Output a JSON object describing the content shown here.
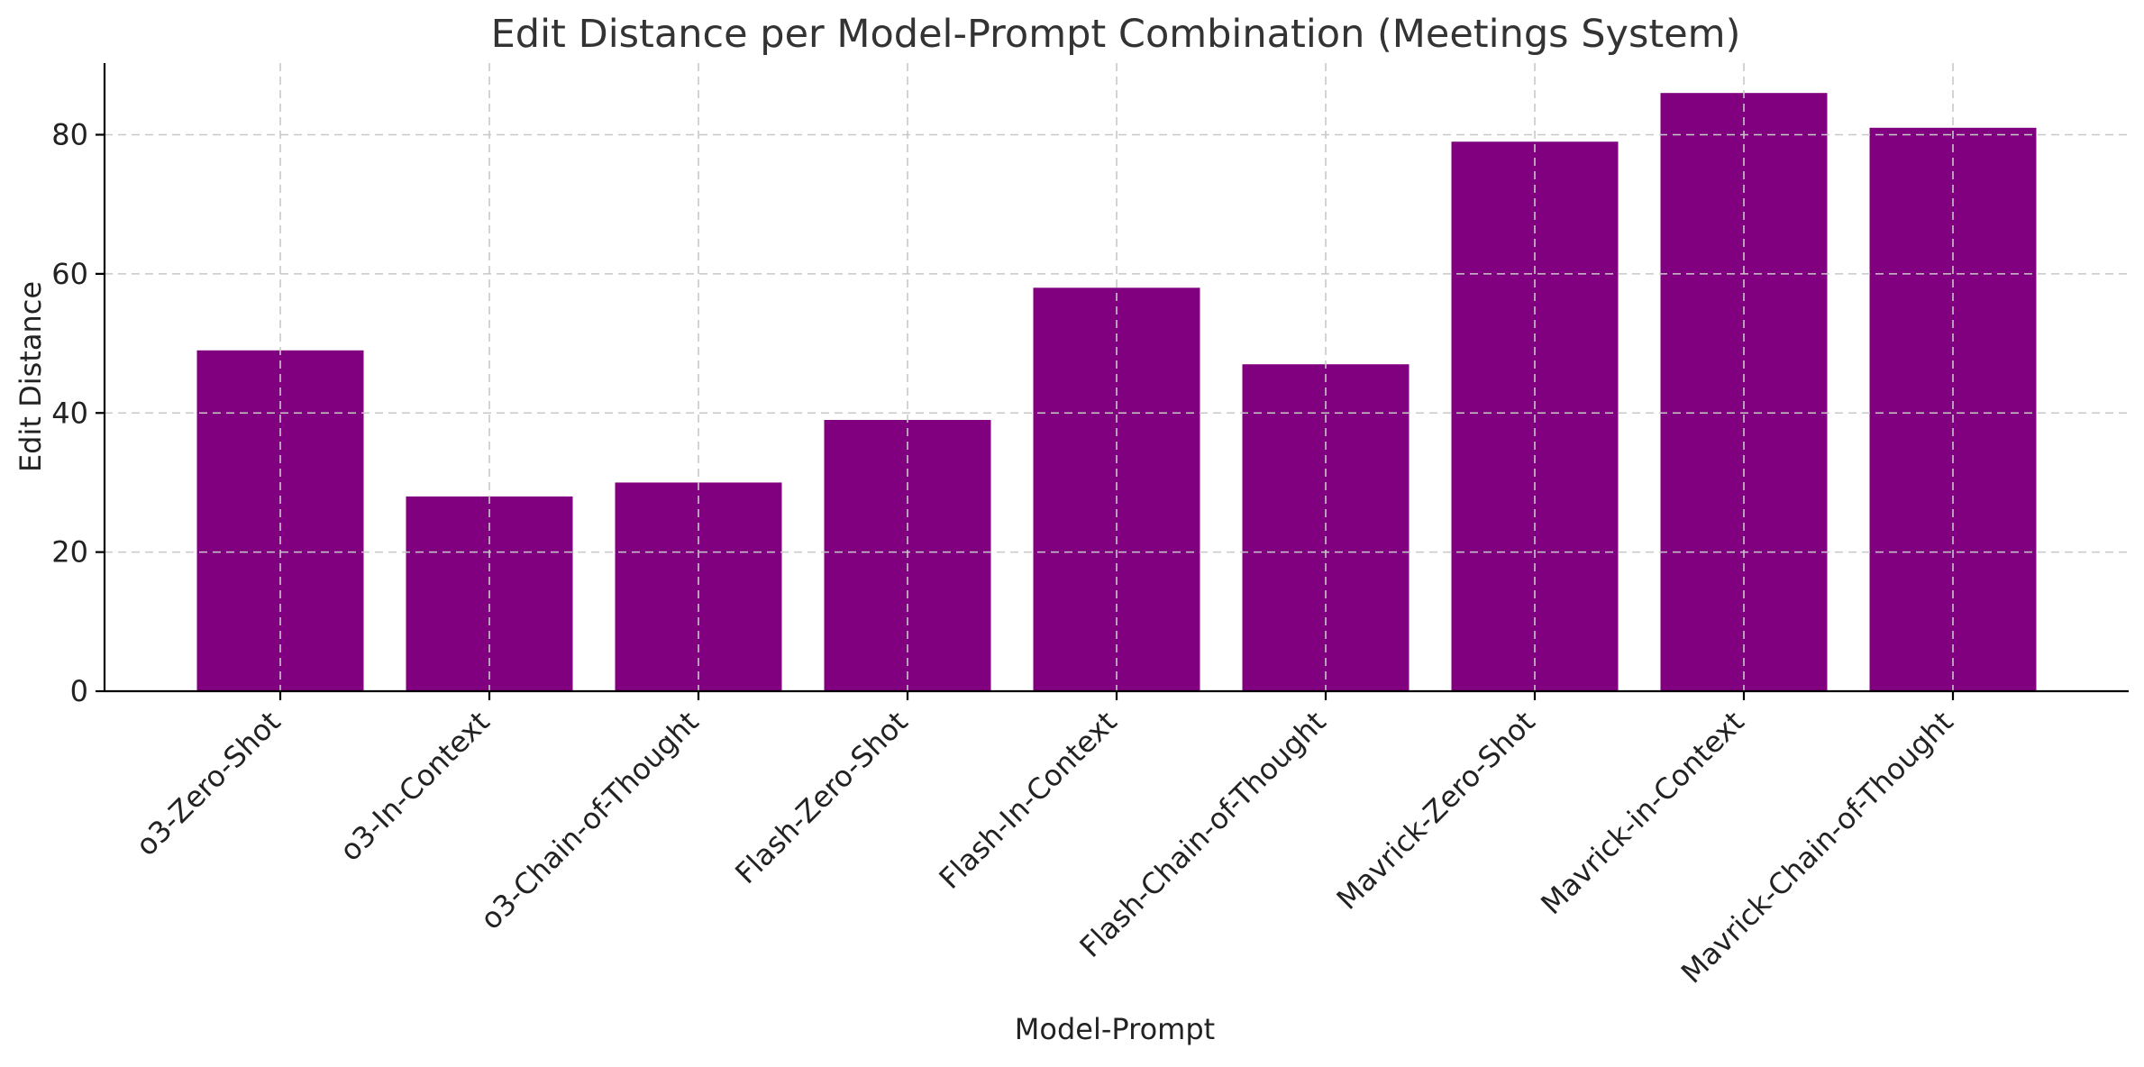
{
  "chart_data": {
    "type": "bar",
    "title": "Edit Distance per Model-Prompt Combination (Meetings System)",
    "xlabel": "Model-Prompt",
    "ylabel": "Edit Distance",
    "categories": [
      "o3-Zero-Shot",
      "o3-In-Context",
      "o3-Chain-of-Thought",
      "Flash-Zero-Shot",
      "Flash-In-Context",
      "Flash-Chain-of-Thought",
      "Mavrick-Zero-Shot",
      "Mavrick-in-Context",
      "Mavrick-Chain-of-Thought"
    ],
    "values": [
      49,
      28,
      30,
      39,
      58,
      47,
      79,
      86,
      81
    ],
    "ylim": [
      0,
      90.3
    ],
    "yticks": [
      "0",
      "20",
      "40",
      "60",
      "80"
    ],
    "bar_color": "#800080",
    "grid": true,
    "legend": "none"
  }
}
